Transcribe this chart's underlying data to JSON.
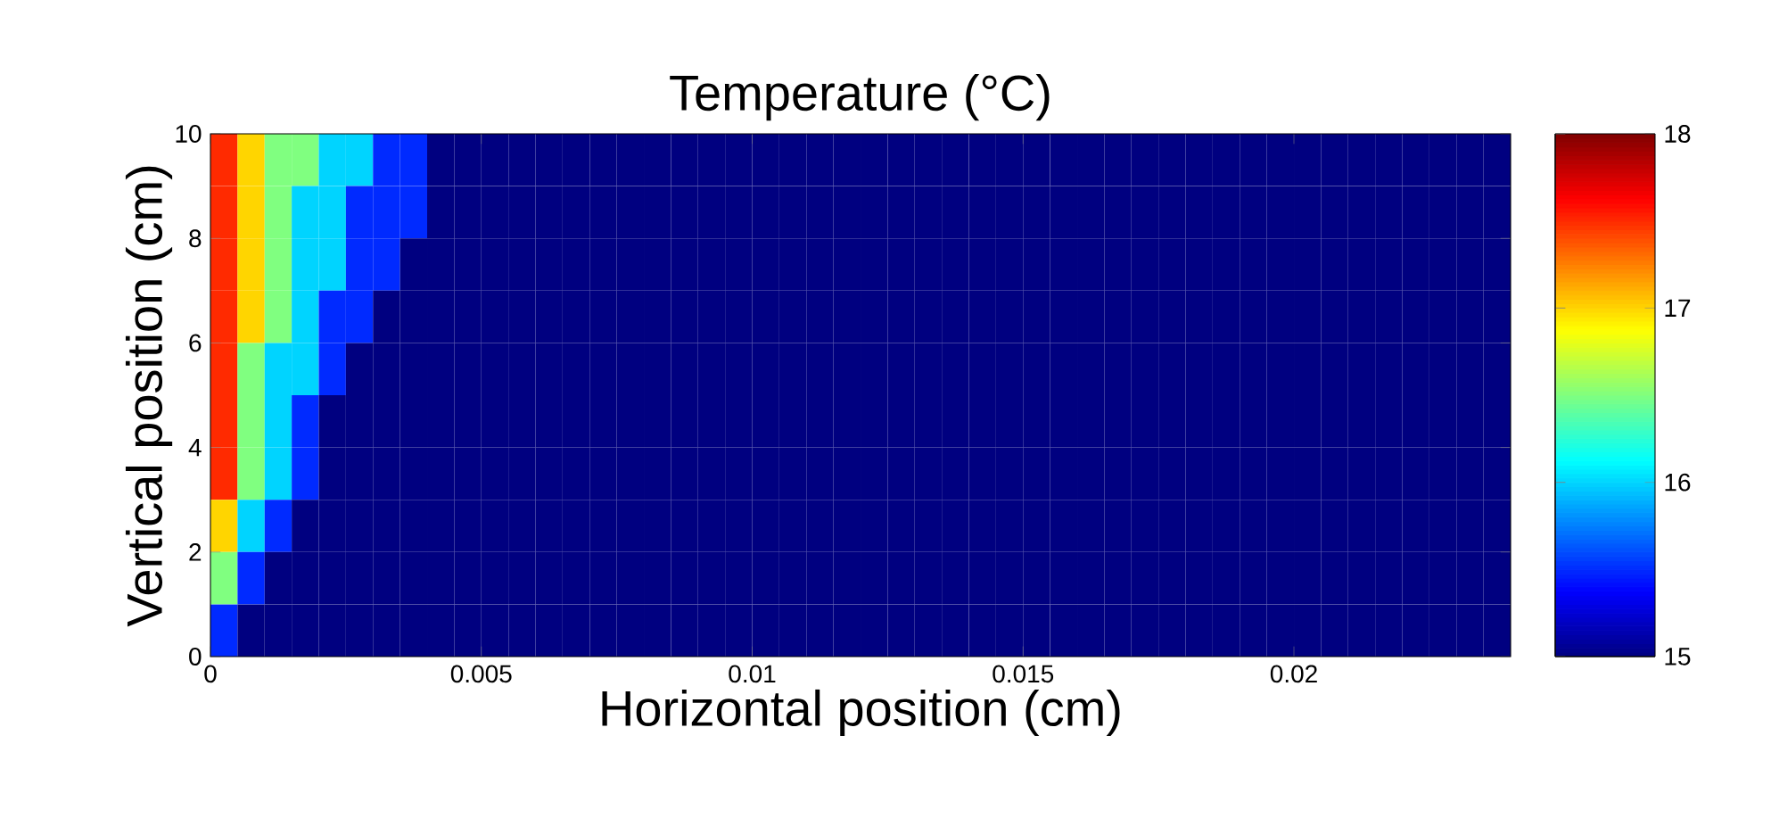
{
  "chart_data": {
    "type": "heatmap",
    "title": "Temperature (°C)",
    "xlabel": "Horizontal position (cm)",
    "ylabel": "Vertical position (cm)",
    "x": [
      0.00025,
      0.00075,
      0.00125,
      0.00175,
      0.00225,
      0.00275,
      0.00325,
      0.00375,
      0.00425,
      0.00475,
      0.00525,
      0.00575,
      0.00625,
      0.00675,
      0.00725,
      0.00775,
      0.00825,
      0.00875,
      0.00925,
      0.00975,
      0.01025,
      0.01075,
      0.01125,
      0.01175,
      0.01225,
      0.01275,
      0.01325,
      0.01375,
      0.01425,
      0.01475,
      0.01525,
      0.01575,
      0.01625,
      0.01675,
      0.01725,
      0.01775,
      0.01825,
      0.01875,
      0.01925,
      0.01975,
      0.02025,
      0.02075,
      0.02125,
      0.02175,
      0.02225,
      0.02275,
      0.02325,
      0.02375
    ],
    "y": [
      9.5,
      8.5,
      7.5,
      6.5,
      5.5,
      4.5,
      3.5,
      2.5,
      1.5,
      0.5
    ],
    "cells": [
      [
        17.5,
        17,
        16.5,
        16.5,
        16,
        16,
        15.5,
        15.5,
        15,
        15,
        15,
        15,
        15,
        15,
        15,
        15,
        15,
        15,
        15,
        15,
        15,
        15,
        15,
        15,
        15,
        15,
        15,
        15,
        15,
        15,
        15,
        15,
        15,
        15,
        15,
        15,
        15,
        15,
        15,
        15,
        15,
        15,
        15,
        15,
        15,
        15,
        15,
        15
      ],
      [
        17.5,
        17,
        16.5,
        16,
        16,
        15.5,
        15.5,
        15.5,
        15,
        15,
        15,
        15,
        15,
        15,
        15,
        15,
        15,
        15,
        15,
        15,
        15,
        15,
        15,
        15,
        15,
        15,
        15,
        15,
        15,
        15,
        15,
        15,
        15,
        15,
        15,
        15,
        15,
        15,
        15,
        15,
        15,
        15,
        15,
        15,
        15,
        15,
        15,
        15
      ],
      [
        17.5,
        17,
        16.5,
        16,
        16,
        15.5,
        15.5,
        15,
        15,
        15,
        15,
        15,
        15,
        15,
        15,
        15,
        15,
        15,
        15,
        15,
        15,
        15,
        15,
        15,
        15,
        15,
        15,
        15,
        15,
        15,
        15,
        15,
        15,
        15,
        15,
        15,
        15,
        15,
        15,
        15,
        15,
        15,
        15,
        15,
        15,
        15,
        15,
        15
      ],
      [
        17.5,
        17,
        16.5,
        16,
        15.5,
        15.5,
        15,
        15,
        15,
        15,
        15,
        15,
        15,
        15,
        15,
        15,
        15,
        15,
        15,
        15,
        15,
        15,
        15,
        15,
        15,
        15,
        15,
        15,
        15,
        15,
        15,
        15,
        15,
        15,
        15,
        15,
        15,
        15,
        15,
        15,
        15,
        15,
        15,
        15,
        15,
        15,
        15,
        15
      ],
      [
        17.5,
        16.5,
        16,
        16,
        15.5,
        15,
        15,
        15,
        15,
        15,
        15,
        15,
        15,
        15,
        15,
        15,
        15,
        15,
        15,
        15,
        15,
        15,
        15,
        15,
        15,
        15,
        15,
        15,
        15,
        15,
        15,
        15,
        15,
        15,
        15,
        15,
        15,
        15,
        15,
        15,
        15,
        15,
        15,
        15,
        15,
        15,
        15,
        15
      ],
      [
        17.5,
        16.5,
        16,
        15.5,
        15,
        15,
        15,
        15,
        15,
        15,
        15,
        15,
        15,
        15,
        15,
        15,
        15,
        15,
        15,
        15,
        15,
        15,
        15,
        15,
        15,
        15,
        15,
        15,
        15,
        15,
        15,
        15,
        15,
        15,
        15,
        15,
        15,
        15,
        15,
        15,
        15,
        15,
        15,
        15,
        15,
        15,
        15,
        15
      ],
      [
        17.5,
        16.5,
        16,
        15.5,
        15,
        15,
        15,
        15,
        15,
        15,
        15,
        15,
        15,
        15,
        15,
        15,
        15,
        15,
        15,
        15,
        15,
        15,
        15,
        15,
        15,
        15,
        15,
        15,
        15,
        15,
        15,
        15,
        15,
        15,
        15,
        15,
        15,
        15,
        15,
        15,
        15,
        15,
        15,
        15,
        15,
        15,
        15,
        15
      ],
      [
        17,
        16,
        15.5,
        15,
        15,
        15,
        15,
        15,
        15,
        15,
        15,
        15,
        15,
        15,
        15,
        15,
        15,
        15,
        15,
        15,
        15,
        15,
        15,
        15,
        15,
        15,
        15,
        15,
        15,
        15,
        15,
        15,
        15,
        15,
        15,
        15,
        15,
        15,
        15,
        15,
        15,
        15,
        15,
        15,
        15,
        15,
        15,
        15
      ],
      [
        16.5,
        15.5,
        15,
        15,
        15,
        15,
        15,
        15,
        15,
        15,
        15,
        15,
        15,
        15,
        15,
        15,
        15,
        15,
        15,
        15,
        15,
        15,
        15,
        15,
        15,
        15,
        15,
        15,
        15,
        15,
        15,
        15,
        15,
        15,
        15,
        15,
        15,
        15,
        15,
        15,
        15,
        15,
        15,
        15,
        15,
        15,
        15,
        15
      ],
      [
        15.5,
        15,
        15,
        15,
        15,
        15,
        15,
        15,
        15,
        15,
        15,
        15,
        15,
        15,
        15,
        15,
        15,
        15,
        15,
        15,
        15,
        15,
        15,
        15,
        15,
        15,
        15,
        15,
        15,
        15,
        15,
        15,
        15,
        15,
        15,
        15,
        15,
        15,
        15,
        15,
        15,
        15,
        15,
        15,
        15,
        15,
        15,
        15
      ]
    ],
    "xlim": [
      0,
      0.024
    ],
    "ylim": [
      0,
      10
    ],
    "xticks": [
      0,
      0.005,
      0.01,
      0.015,
      0.02
    ],
    "yticks": [
      0,
      2,
      4,
      6,
      8,
      10
    ],
    "clim": [
      15,
      18
    ],
    "cticks": [
      15,
      16,
      17,
      18
    ]
  }
}
